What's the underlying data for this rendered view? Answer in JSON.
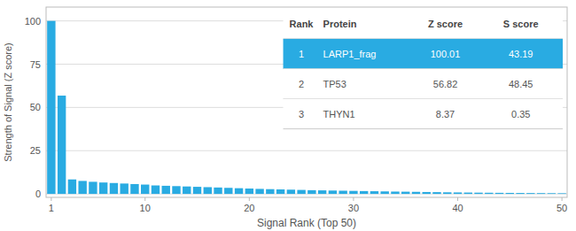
{
  "chart_data": {
    "type": "bar",
    "x": [
      1,
      2,
      3,
      4,
      5,
      6,
      7,
      8,
      9,
      10,
      11,
      12,
      13,
      14,
      15,
      16,
      17,
      18,
      19,
      20,
      21,
      22,
      23,
      24,
      25,
      26,
      27,
      28,
      29,
      30,
      31,
      32,
      33,
      34,
      35,
      36,
      37,
      38,
      39,
      40,
      41,
      42,
      43,
      44,
      45,
      46,
      47,
      48,
      49,
      50
    ],
    "values": [
      100.01,
      56.82,
      8.37,
      7.5,
      7.0,
      6.6,
      6.3,
      6.0,
      5.7,
      5.4,
      4.9,
      4.7,
      4.5,
      4.3,
      4.1,
      3.9,
      3.7,
      3.5,
      3.3,
      3.1,
      2.9,
      2.75,
      2.6,
      2.45,
      2.3,
      2.15,
      2.05,
      1.95,
      1.85,
      1.75,
      1.65,
      1.55,
      1.45,
      1.35,
      1.28,
      1.2,
      1.1,
      1.02,
      0.92,
      0.85,
      0.78,
      0.72,
      0.67,
      0.62,
      0.58,
      0.53,
      0.49,
      0.45,
      0.41,
      0.37
    ],
    "color": "#29ABE2",
    "xlabel": "Signal Rank (Top 50)",
    "ylabel": "Strength of Signal (Z score)",
    "xlim": [
      0.5,
      50.5
    ],
    "ylim": [
      -2,
      108
    ],
    "xticks": [
      1,
      10,
      20,
      30,
      40,
      50
    ],
    "yticks": [
      0,
      25,
      50,
      75,
      100
    ],
    "grid": true,
    "table": {
      "columns": [
        "Rank",
        "Protein",
        "Z score",
        "S score"
      ],
      "rows": [
        [
          "1",
          "LARP1_frag",
          "100.01",
          "43.19"
        ],
        [
          "2",
          "TP53",
          "56.82",
          "48.45"
        ],
        [
          "3",
          "THYN1",
          "8.37",
          "0.35"
        ]
      ],
      "highlight": [
        true,
        false,
        false
      ]
    }
  }
}
